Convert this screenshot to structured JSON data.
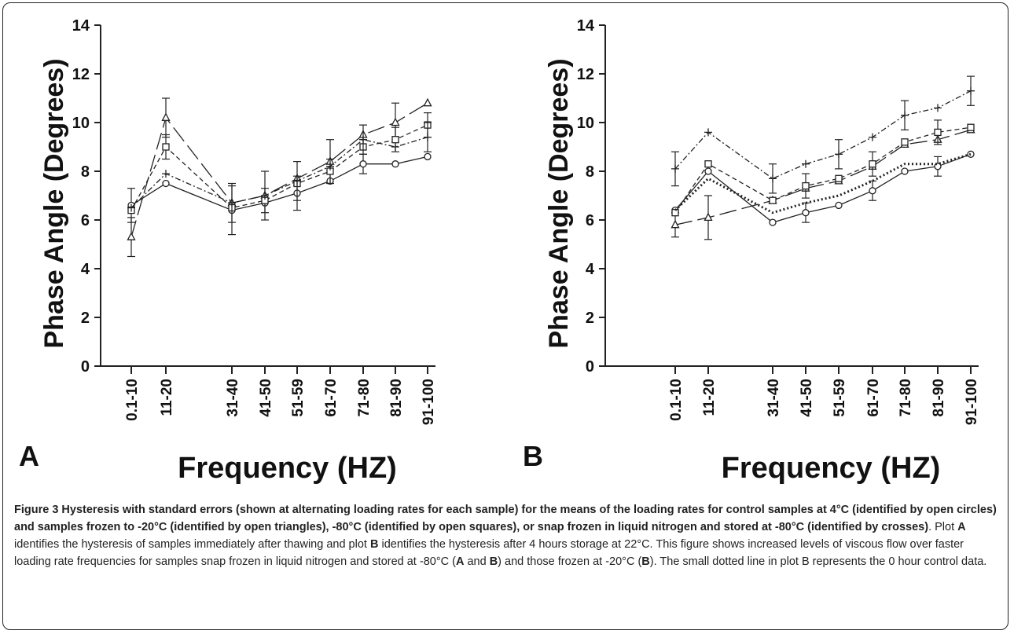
{
  "chart_data": [
    {
      "type": "line",
      "panel_label": "A",
      "categories": [
        "0.1-10",
        "11-20",
        "31-40",
        "41-50",
        "51-59",
        "61-70",
        "71-80",
        "81-90",
        "91-100"
      ],
      "ylabel": "Phase Angle (Degrees)",
      "xlabel": "Frequency (HZ)",
      "ylim": [
        0,
        14
      ],
      "yticks": [
        "0",
        "2",
        "4",
        "6",
        "8",
        "10",
        "12",
        "14"
      ],
      "series": [
        {
          "marker": "circle",
          "values": [
            6.6,
            7.5,
            6.4,
            6.7,
            7.1,
            7.6,
            8.3,
            8.3,
            8.6
          ],
          "errors": [
            0.7,
            null,
            1.0,
            null,
            0.7,
            null,
            0.4,
            null,
            null
          ]
        },
        {
          "marker": "triangle",
          "values": [
            5.3,
            10.2,
            6.7,
            7.0,
            7.7,
            8.4,
            9.5,
            10.0,
            10.8
          ],
          "errors": [
            0.8,
            0.8,
            null,
            1.0,
            null,
            0.9,
            null,
            0.8,
            null
          ]
        },
        {
          "marker": "square",
          "values": [
            6.4,
            9.0,
            6.5,
            6.8,
            7.5,
            8.0,
            9.0,
            9.3,
            9.9
          ],
          "errors": [
            null,
            0.5,
            null,
            0.5,
            null,
            0.5,
            null,
            0.5,
            0.5
          ]
        },
        {
          "marker": "cross",
          "values": [
            6.5,
            7.9,
            6.7,
            7.0,
            7.6,
            8.2,
            9.3,
            9.0,
            9.4
          ],
          "errors": [
            null,
            null,
            0.8,
            null,
            0.8,
            null,
            0.6,
            null,
            0.6
          ]
        }
      ]
    },
    {
      "type": "line",
      "panel_label": "B",
      "categories": [
        "0.1-10",
        "11-20",
        "31-40",
        "41-50",
        "51-59",
        "61-70",
        "71-80",
        "81-90",
        "91-100"
      ],
      "ylabel": "Phase Angle (Degrees)",
      "xlabel": "Frequency (HZ)",
      "ylim": [
        0,
        14
      ],
      "yticks": [
        "0",
        "2",
        "4",
        "6",
        "8",
        "10",
        "12",
        "14"
      ],
      "series": [
        {
          "marker": "circle",
          "values": [
            6.4,
            8.0,
            5.9,
            6.3,
            6.6,
            7.2,
            8.0,
            8.2,
            8.7
          ],
          "errors": [
            null,
            null,
            null,
            0.4,
            null,
            0.4,
            null,
            0.4,
            null
          ]
        },
        {
          "marker": "triangle",
          "values": [
            5.8,
            6.1,
            6.8,
            7.3,
            7.6,
            8.2,
            9.1,
            9.3,
            9.7
          ],
          "errors": [
            0.5,
            0.9,
            null,
            null,
            null,
            null,
            null,
            null,
            null
          ]
        },
        {
          "marker": "square",
          "values": [
            6.3,
            8.3,
            6.8,
            7.4,
            7.7,
            8.3,
            9.2,
            9.6,
            9.8
          ],
          "errors": [
            null,
            null,
            null,
            0.5,
            null,
            0.5,
            null,
            0.5,
            null
          ]
        },
        {
          "marker": "cross",
          "values": [
            8.1,
            9.6,
            7.7,
            8.3,
            8.7,
            9.4,
            10.3,
            10.6,
            11.3
          ],
          "errors": [
            0.7,
            null,
            0.6,
            null,
            0.6,
            null,
            0.6,
            null,
            0.6
          ]
        },
        {
          "marker": "none",
          "values": [
            6.4,
            7.7,
            6.3,
            6.7,
            7.0,
            7.6,
            8.3,
            8.3,
            8.7
          ],
          "errors": [
            null,
            null,
            null,
            null,
            null,
            null,
            null,
            null,
            null
          ]
        }
      ]
    }
  ],
  "caption": {
    "title_bold": "Figure 3 Hysteresis with standard errors (shown at alternating loading rates for each sample) for the means of the loading rates for control samples at 4°C (identified by open circles) and samples frozen to -20°C (identified by open triangles), -80°C (identified by open squares), or snap frozen in liquid nitrogen and stored at -80°C (identified by crosses)",
    "s1": ". Plot ",
    "b1": "A",
    "s2": " identifies the hysteresis of samples immediately after thawing and plot ",
    "b2": "B",
    "s3": " identifies the hysteresis after 4 hours storage at 22°C. This figure shows increased levels of viscous flow over faster loading rate frequencies for samples snap frozen in liquid nitrogen and stored at -80°C (",
    "b3": "A",
    "s4": " and ",
    "b4": "B",
    "s5": ") and those frozen at -20°C (",
    "b5": "B",
    "s6": "). The small dotted line in plot B represents the 0 hour control data."
  }
}
